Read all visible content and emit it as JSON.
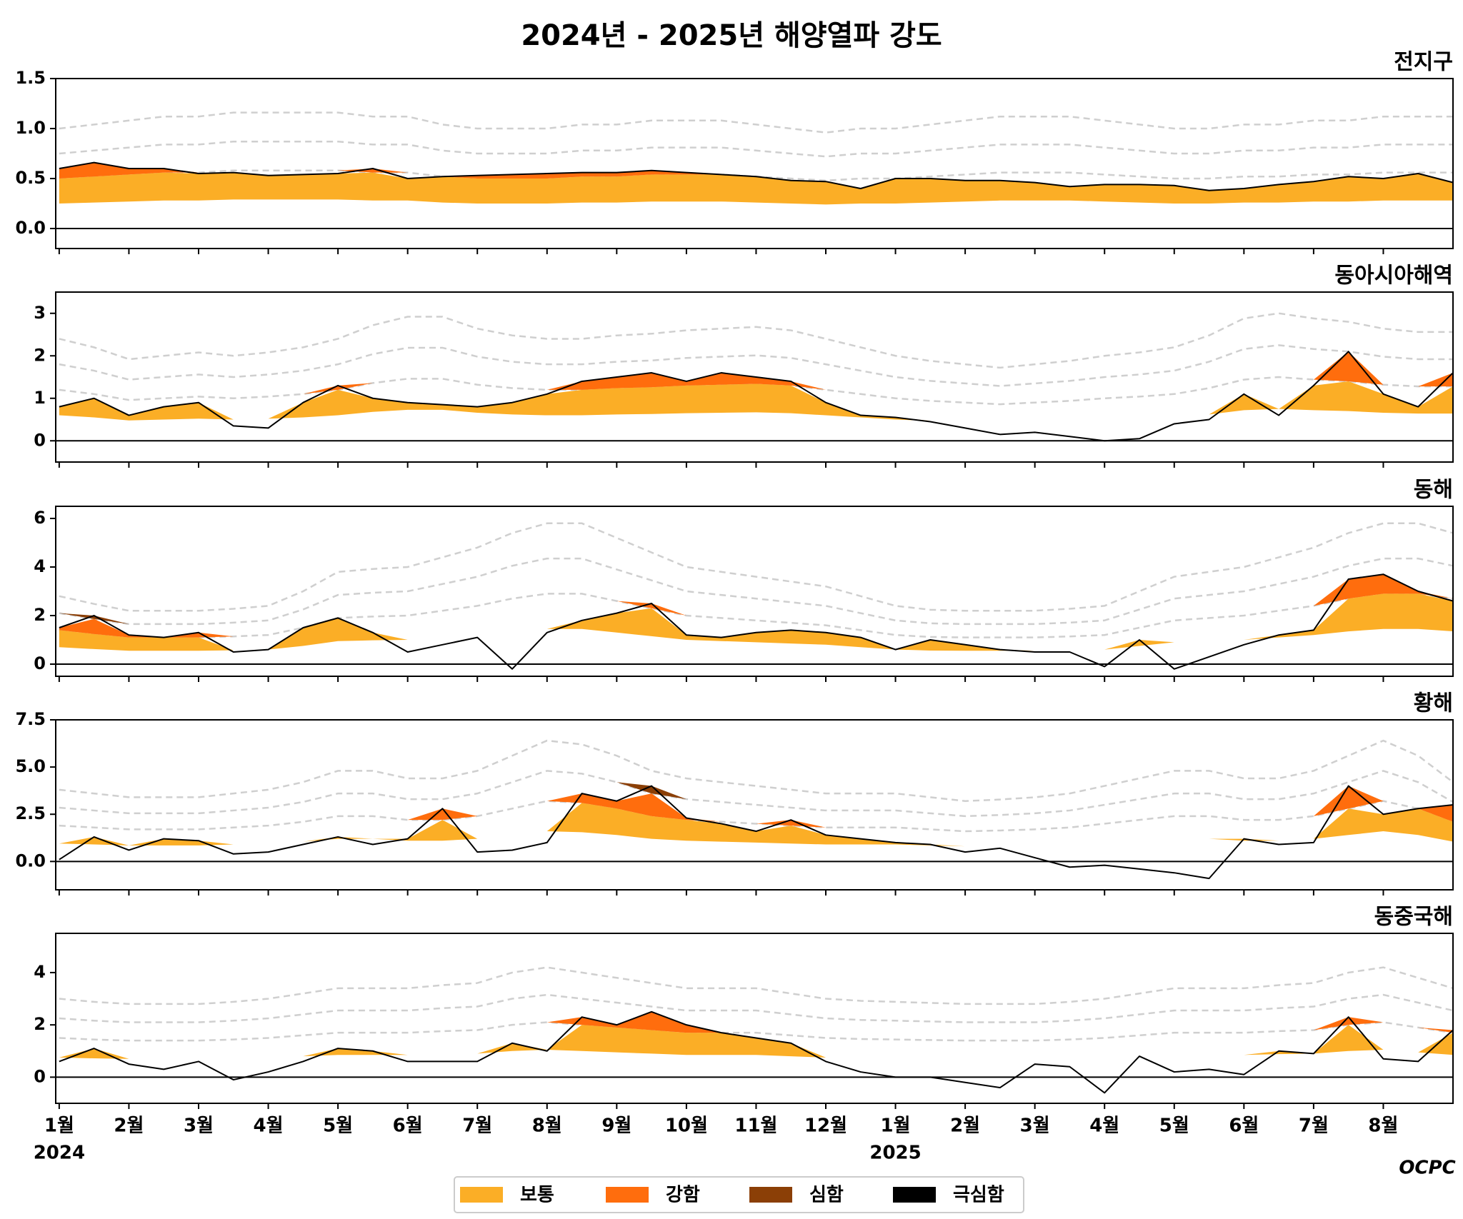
{
  "title": "2024년 - 2025년 해양열파 강도",
  "logo": "OCPC",
  "legend": [
    {
      "name": "보통",
      "color": "#fbae26"
    },
    {
      "name": "강함",
      "color": "#ff6d0d"
    },
    {
      "name": "심함",
      "color": "#8b3f06"
    },
    {
      "name": "극심함",
      "color": "#000000"
    }
  ],
  "x": [
    0,
    0.5,
    1,
    1.5,
    2,
    2.5,
    3,
    3.5,
    4,
    4.5,
    5,
    5.5,
    6,
    6.5,
    7,
    7.5,
    8,
    8.5,
    9,
    9.5,
    10,
    10.5,
    11,
    11.5,
    12,
    12.5,
    13,
    13.5,
    14,
    14.5,
    15,
    15.5,
    16,
    16.5,
    17,
    17.5,
    18,
    18.5,
    19,
    19.5,
    20
  ],
  "xlim": [
    -0.05,
    20
  ],
  "xticks": [
    {
      "value": 0,
      "label": "1월"
    },
    {
      "value": 1,
      "label": "2월"
    },
    {
      "value": 2,
      "label": "3월"
    },
    {
      "value": 3,
      "label": "4월"
    },
    {
      "value": 4,
      "label": "5월"
    },
    {
      "value": 5,
      "label": "6월"
    },
    {
      "value": 6,
      "label": "7월"
    },
    {
      "value": 7,
      "label": "8월"
    },
    {
      "value": 8,
      "label": "9월"
    },
    {
      "value": 9,
      "label": "10월"
    },
    {
      "value": 10,
      "label": "11월"
    },
    {
      "value": 11,
      "label": "12월"
    },
    {
      "value": 12,
      "label": "1월"
    },
    {
      "value": 13,
      "label": "2월"
    },
    {
      "value": 14,
      "label": "3월"
    },
    {
      "value": 15,
      "label": "4월"
    },
    {
      "value": 16,
      "label": "5월"
    },
    {
      "value": 17,
      "label": "6월"
    },
    {
      "value": 18,
      "label": "7월"
    },
    {
      "value": 19,
      "label": "8월"
    }
  ],
  "year_labels": [
    {
      "value": 0,
      "label": "2024"
    },
    {
      "value": 12,
      "label": "2025"
    }
  ],
  "chart_data": [
    {
      "type": "area",
      "title": "전지구",
      "ylim": [
        -0.2,
        1.5
      ],
      "yticks": [
        {
          "value": 0,
          "label": "0.0"
        },
        0.5,
        {
          "value": 1,
          "label": "1.0"
        },
        1.5
      ],
      "anomaly": [
        0.6,
        0.66,
        0.6,
        0.6,
        0.55,
        0.56,
        0.53,
        0.54,
        0.55,
        0.6,
        0.5,
        0.52,
        0.53,
        0.54,
        0.55,
        0.56,
        0.56,
        0.58,
        0.56,
        0.54,
        0.52,
        0.48,
        0.47,
        0.4,
        0.5,
        0.5,
        0.48,
        0.48,
        0.46,
        0.42,
        0.44,
        0.44,
        0.43,
        0.38,
        0.4,
        0.44,
        0.47,
        0.52,
        0.5,
        0.55,
        0.46
      ],
      "threshold": [
        0.25,
        0.26,
        0.27,
        0.28,
        0.28,
        0.29,
        0.29,
        0.29,
        0.29,
        0.28,
        0.28,
        0.26,
        0.25,
        0.25,
        0.25,
        0.26,
        0.26,
        0.27,
        0.27,
        0.27,
        0.26,
        0.25,
        0.24,
        0.25,
        0.25,
        0.26,
        0.27,
        0.28,
        0.28,
        0.28,
        0.27,
        0.26,
        0.25,
        0.25,
        0.26,
        0.26,
        0.27,
        0.27,
        0.28,
        0.28,
        0.28
      ]
    },
    {
      "type": "area",
      "title": "동아시아해역",
      "ylim": [
        -0.5,
        3.5
      ],
      "yticks": [
        0,
        1,
        2,
        3
      ],
      "anomaly": [
        0.8,
        1.0,
        0.6,
        0.8,
        0.9,
        0.35,
        0.3,
        0.9,
        1.3,
        1.0,
        0.9,
        0.85,
        0.8,
        0.9,
        1.1,
        1.4,
        1.5,
        1.6,
        1.4,
        1.6,
        1.5,
        1.4,
        0.9,
        0.6,
        0.55,
        0.45,
        0.3,
        0.15,
        0.2,
        0.1,
        0.0,
        0.05,
        0.4,
        0.5,
        1.1,
        0.6,
        1.3,
        2.1,
        1.1,
        0.8,
        1.6
      ],
      "threshold": [
        0.6,
        0.55,
        0.48,
        0.5,
        0.52,
        0.5,
        0.52,
        0.55,
        0.6,
        0.68,
        0.73,
        0.73,
        0.66,
        0.62,
        0.6,
        0.6,
        0.62,
        0.63,
        0.65,
        0.66,
        0.67,
        0.65,
        0.6,
        0.55,
        0.5,
        0.47,
        0.45,
        0.43,
        0.45,
        0.47,
        0.5,
        0.52,
        0.55,
        0.62,
        0.72,
        0.75,
        0.72,
        0.7,
        0.66,
        0.64,
        0.64
      ]
    },
    {
      "type": "area",
      "title": "동해",
      "ylim": [
        -0.5,
        6.5
      ],
      "yticks": [
        0,
        2,
        4,
        6
      ],
      "anomaly": [
        1.5,
        2.0,
        1.2,
        1.1,
        1.3,
        0.5,
        0.6,
        1.5,
        1.9,
        1.3,
        0.5,
        0.8,
        1.1,
        -0.2,
        1.3,
        1.8,
        2.1,
        2.5,
        1.2,
        1.1,
        1.3,
        1.4,
        1.3,
        1.1,
        0.6,
        1.0,
        0.8,
        0.6,
        0.5,
        0.5,
        -0.1,
        1.0,
        -0.2,
        0.3,
        0.8,
        1.2,
        1.4,
        3.5,
        3.7,
        3.0,
        2.6
      ],
      "threshold": [
        0.7,
        0.62,
        0.55,
        0.55,
        0.55,
        0.57,
        0.6,
        0.75,
        0.95,
        0.98,
        1.0,
        1.1,
        1.2,
        1.35,
        1.45,
        1.45,
        1.3,
        1.15,
        1.0,
        0.95,
        0.9,
        0.85,
        0.8,
        0.7,
        0.6,
        0.56,
        0.55,
        0.55,
        0.55,
        0.57,
        0.6,
        0.75,
        0.9,
        0.95,
        1.0,
        1.1,
        1.2,
        1.35,
        1.45,
        1.45,
        1.35
      ]
    },
    {
      "type": "area",
      "title": "황해",
      "ylim": [
        -1.5,
        7.5
      ],
      "yticks": [
        {
          "value": 0,
          "label": "0.0"
        },
        2.5,
        {
          "value": 5,
          "label": "5.0"
        },
        7.5
      ],
      "anomaly": [
        0.1,
        1.3,
        0.6,
        1.2,
        1.1,
        0.4,
        0.5,
        0.9,
        1.3,
        0.9,
        1.2,
        2.8,
        0.5,
        0.6,
        1.0,
        3.6,
        3.2,
        4.0,
        2.3,
        2.0,
        1.6,
        2.2,
        1.4,
        1.2,
        1.0,
        0.9,
        0.5,
        0.7,
        0.2,
        -0.3,
        -0.2,
        -0.4,
        -0.6,
        -0.9,
        1.2,
        0.9,
        1.0,
        4.0,
        2.5,
        2.8,
        3.0
      ],
      "threshold": [
        0.95,
        0.9,
        0.85,
        0.85,
        0.85,
        0.9,
        0.95,
        1.05,
        1.2,
        1.2,
        1.1,
        1.1,
        1.2,
        1.4,
        1.6,
        1.55,
        1.4,
        1.2,
        1.1,
        1.05,
        1.0,
        0.95,
        0.9,
        0.9,
        0.9,
        0.85,
        0.8,
        0.82,
        0.85,
        0.9,
        1.0,
        1.1,
        1.2,
        1.2,
        1.1,
        1.1,
        1.2,
        1.4,
        1.6,
        1.4,
        1.05
      ]
    },
    {
      "type": "area",
      "title": "동중국해",
      "ylim": [
        -1,
        5.5
      ],
      "yticks": [
        0,
        2,
        4
      ],
      "anomaly": [
        0.6,
        1.1,
        0.5,
        0.3,
        0.6,
        -0.1,
        0.2,
        0.6,
        1.1,
        1.0,
        0.6,
        0.6,
        0.6,
        1.3,
        1.0,
        2.3,
        2.0,
        2.5,
        2.0,
        1.7,
        1.5,
        1.3,
        0.6,
        0.2,
        0.0,
        0.0,
        -0.2,
        -0.4,
        0.5,
        0.4,
        -0.6,
        0.8,
        0.2,
        0.3,
        0.1,
        1.0,
        0.9,
        2.3,
        0.7,
        0.6,
        1.8
      ],
      "threshold": [
        0.75,
        0.72,
        0.7,
        0.7,
        0.7,
        0.72,
        0.75,
        0.8,
        0.85,
        0.85,
        0.85,
        0.88,
        0.9,
        1.0,
        1.05,
        1.0,
        0.95,
        0.9,
        0.85,
        0.85,
        0.85,
        0.8,
        0.75,
        0.73,
        0.72,
        0.71,
        0.7,
        0.7,
        0.7,
        0.72,
        0.75,
        0.8,
        0.85,
        0.85,
        0.85,
        0.88,
        0.9,
        1.0,
        1.05,
        0.95,
        0.85
      ]
    }
  ]
}
